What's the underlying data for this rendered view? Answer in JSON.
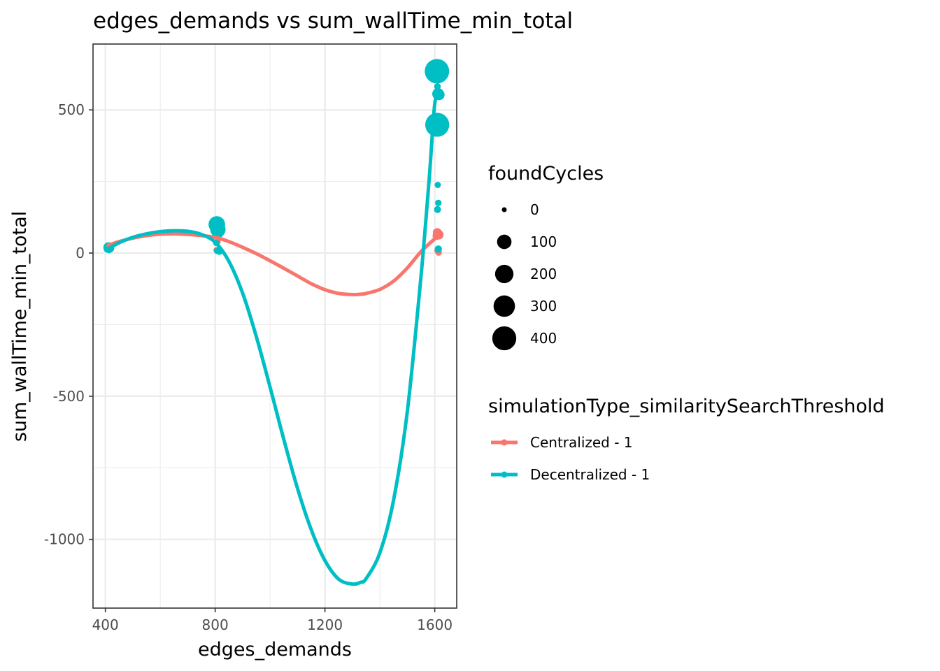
{
  "chart_data": {
    "type": "scatter",
    "title": "edges_demands  vs  sum_wallTime_min_total",
    "xlabel": "edges_demands",
    "ylabel": "sum_wallTime_min_total",
    "xlim": [
      355,
      1680
    ],
    "ylim": [
      -1240,
      730
    ],
    "x_ticks": [
      400,
      800,
      1200,
      1600
    ],
    "y_ticks": [
      -1000,
      -500,
      0,
      500
    ],
    "x_tick_labels": [
      "400",
      "800",
      "1200",
      "1600"
    ],
    "y_tick_labels": [
      "-1000",
      "-500",
      "0",
      "500"
    ],
    "grid": true,
    "legend_position": "right",
    "size_legend": {
      "title": "foundCycles",
      "levels": [
        0,
        100,
        200,
        300,
        400
      ],
      "labels": [
        "0",
        "100",
        "200",
        "300",
        "400"
      ]
    },
    "color_legend": {
      "title": "simulationType_similaritySearchThreshold"
    },
    "series": [
      {
        "name": "Centralized - 1",
        "color": "#F8766D",
        "points": [
          {
            "x": 410,
            "y": 20,
            "size": 5
          },
          {
            "x": 412,
            "y": 24,
            "size": 3
          },
          {
            "x": 414,
            "y": 18,
            "size": 8
          },
          {
            "x": 805,
            "y": 10,
            "size": 2
          },
          {
            "x": 808,
            "y": 40,
            "size": 4
          },
          {
            "x": 812,
            "y": 70,
            "size": 6
          },
          {
            "x": 815,
            "y": 6,
            "size": 3
          },
          {
            "x": 1607,
            "y": 60,
            "size": 12
          },
          {
            "x": 1609,
            "y": 72,
            "size": 16
          },
          {
            "x": 1612,
            "y": 68,
            "size": 20
          },
          {
            "x": 1615,
            "y": 64,
            "size": 22
          },
          {
            "x": 1611,
            "y": 8,
            "size": 4
          },
          {
            "x": 1614,
            "y": 2,
            "size": 3
          }
        ],
        "curve": {
          "x": [
            410,
            450,
            500,
            550,
            600,
            650,
            700,
            750,
            800,
            850,
            900,
            950,
            1000,
            1050,
            1100,
            1150,
            1200,
            1250,
            1300,
            1330,
            1350,
            1400,
            1450,
            1500,
            1550,
            1600,
            1615
          ],
          "y": [
            27,
            40,
            52,
            61,
            66,
            67,
            65,
            61,
            55,
            40,
            20,
            -2,
            -27,
            -53,
            -80,
            -107,
            -128,
            -141,
            -145,
            -144,
            -141,
            -127,
            -98,
            -52,
            5,
            50,
            62
          ]
        }
      },
      {
        "name": "Decentralized - 1",
        "color": "#00BFC4",
        "points": [
          {
            "x": 408,
            "y": 15,
            "size": 10
          },
          {
            "x": 411,
            "y": 20,
            "size": 30
          },
          {
            "x": 413,
            "y": 12,
            "size": 6
          },
          {
            "x": 416,
            "y": 17,
            "size": 18
          },
          {
            "x": 806,
            "y": 100,
            "size": 150
          },
          {
            "x": 810,
            "y": 82,
            "size": 120
          },
          {
            "x": 812,
            "y": 72,
            "size": 40
          },
          {
            "x": 804,
            "y": 35,
            "size": 2
          },
          {
            "x": 808,
            "y": 8,
            "size": 4
          },
          {
            "x": 816,
            "y": 5,
            "size": 3
          },
          {
            "x": 1608,
            "y": 635,
            "size": 420
          },
          {
            "x": 1609,
            "y": 448,
            "size": 400
          },
          {
            "x": 1610,
            "y": 582,
            "size": 3
          },
          {
            "x": 1612,
            "y": 556,
            "size": 50
          },
          {
            "x": 1616,
            "y": 553,
            "size": 40
          },
          {
            "x": 1611,
            "y": 238,
            "size": 2
          },
          {
            "x": 1613,
            "y": 175,
            "size": 3
          },
          {
            "x": 1610,
            "y": 152,
            "size": 5
          },
          {
            "x": 1613,
            "y": 14,
            "size": 6
          }
        ],
        "curve": {
          "x": [
            410,
            450,
            500,
            550,
            600,
            650,
            700,
            750,
            800,
            850,
            900,
            950,
            1000,
            1050,
            1100,
            1150,
            1200,
            1250,
            1300,
            1330,
            1350,
            1400,
            1450,
            1500,
            1550,
            1580,
            1600,
            1615
          ],
          "y": [
            14,
            36,
            55,
            67,
            75,
            78,
            76,
            65,
            38,
            -29,
            -140,
            -292,
            -468,
            -651,
            -822,
            -966,
            -1074,
            -1139,
            -1156,
            -1150,
            -1137,
            -1047,
            -863,
            -553,
            -80,
            264,
            521,
            545
          ]
        }
      }
    ]
  }
}
